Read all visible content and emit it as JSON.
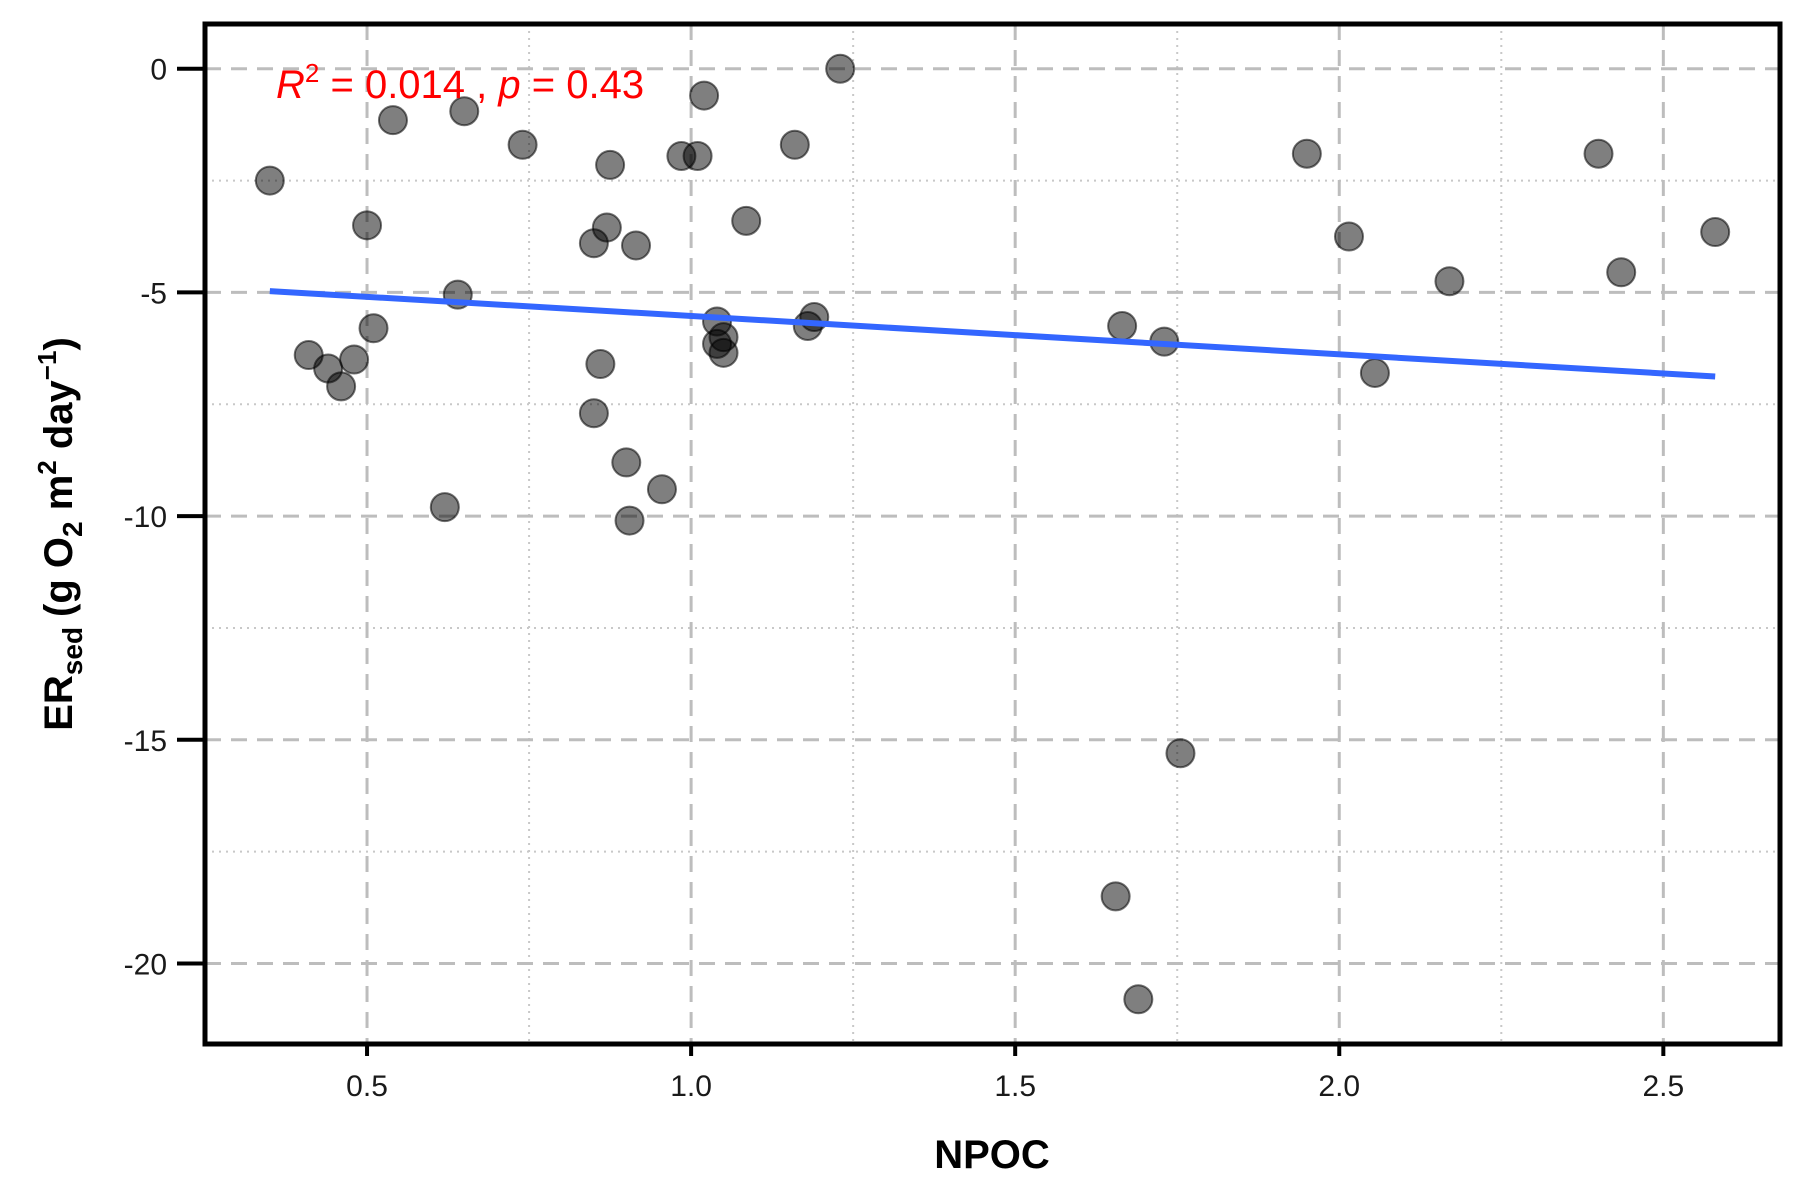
{
  "chart_data": {
    "type": "scatter",
    "xlabel": "NPOC",
    "ylabel": {
      "main": "ER",
      "sub": "sed",
      "units_pre": "(g O",
      "units_o2_sub": "2",
      "units_m": " m",
      "units_m_sup": "2",
      "units_day": " day",
      "units_day_sup": "−1",
      "units_close": ")"
    },
    "annotation": {
      "r_symbol": "R",
      "r_sup": "2",
      "r_value": " = 0.014 , ",
      "p_symbol": "p",
      "p_value": " = 0.43",
      "color": "#ff0000"
    },
    "xlim": [
      0.25,
      2.68
    ],
    "ylim": [
      -21.8,
      1.0
    ],
    "x_ticks": [
      0.5,
      1.0,
      1.5,
      2.0,
      2.5
    ],
    "x_tick_labels": [
      "0.5",
      "1.0",
      "1.5",
      "2.0",
      "2.5"
    ],
    "y_ticks": [
      0,
      -5,
      -10,
      -15,
      -20
    ],
    "y_tick_labels": [
      "0",
      "-5",
      "-10",
      "-15",
      "-20"
    ],
    "grid": true,
    "point_color": "#000000",
    "point_alpha": 0.5,
    "fit_line": {
      "color": "#3366ff",
      "x": [
        0.35,
        2.58
      ],
      "y": [
        -4.97,
        -6.88
      ]
    },
    "points": [
      {
        "x": 0.35,
        "y": -2.5
      },
      {
        "x": 0.41,
        "y": -6.4
      },
      {
        "x": 0.44,
        "y": -6.7
      },
      {
        "x": 0.46,
        "y": -7.1
      },
      {
        "x": 0.48,
        "y": -6.5
      },
      {
        "x": 0.5,
        "y": -3.5
      },
      {
        "x": 0.51,
        "y": -5.8
      },
      {
        "x": 0.54,
        "y": -1.15
      },
      {
        "x": 0.62,
        "y": -9.8
      },
      {
        "x": 0.64,
        "y": -5.05
      },
      {
        "x": 0.65,
        "y": -0.95
      },
      {
        "x": 0.74,
        "y": -1.7
      },
      {
        "x": 0.85,
        "y": -3.9
      },
      {
        "x": 0.85,
        "y": -7.7
      },
      {
        "x": 0.86,
        "y": -6.6
      },
      {
        "x": 0.87,
        "y": -3.55
      },
      {
        "x": 0.875,
        "y": -2.15
      },
      {
        "x": 0.9,
        "y": -8.8
      },
      {
        "x": 0.905,
        "y": -10.1
      },
      {
        "x": 0.915,
        "y": -3.95
      },
      {
        "x": 0.955,
        "y": -9.4
      },
      {
        "x": 0.985,
        "y": -1.95
      },
      {
        "x": 1.01,
        "y": -1.95
      },
      {
        "x": 1.02,
        "y": -0.6
      },
      {
        "x": 1.04,
        "y": -5.65
      },
      {
        "x": 1.04,
        "y": -6.15
      },
      {
        "x": 1.05,
        "y": -6.0
      },
      {
        "x": 1.05,
        "y": -6.35
      },
      {
        "x": 1.085,
        "y": -3.4
      },
      {
        "x": 1.16,
        "y": -1.7
      },
      {
        "x": 1.18,
        "y": -5.75
      },
      {
        "x": 1.19,
        "y": -5.55
      },
      {
        "x": 1.23,
        "y": 0.0
      },
      {
        "x": 1.655,
        "y": -18.5
      },
      {
        "x": 1.665,
        "y": -5.75
      },
      {
        "x": 1.69,
        "y": -20.8
      },
      {
        "x": 1.73,
        "y": -6.1
      },
      {
        "x": 1.755,
        "y": -15.3
      },
      {
        "x": 1.95,
        "y": -1.9
      },
      {
        "x": 2.015,
        "y": -3.75
      },
      {
        "x": 2.055,
        "y": -6.8
      },
      {
        "x": 2.17,
        "y": -4.75
      },
      {
        "x": 2.4,
        "y": -1.9
      },
      {
        "x": 2.435,
        "y": -4.55
      },
      {
        "x": 2.58,
        "y": -3.65
      }
    ]
  }
}
